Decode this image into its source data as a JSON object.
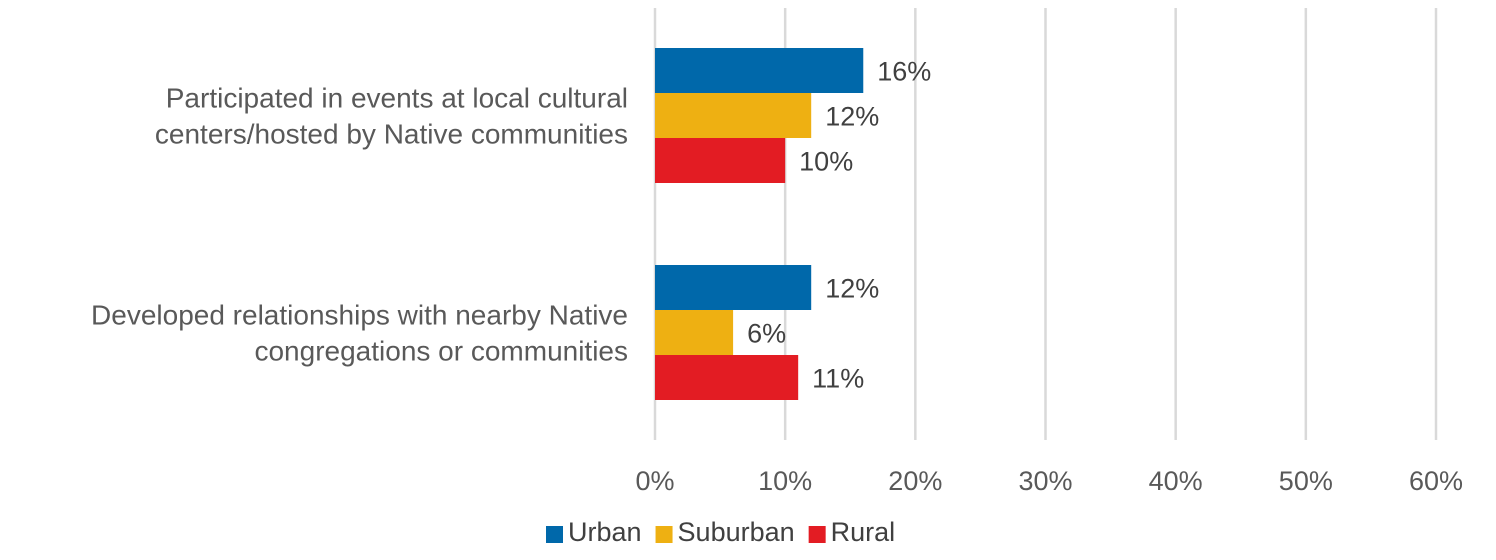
{
  "chart_data": {
    "type": "bar",
    "orientation": "horizontal",
    "title": "",
    "xlabel": "",
    "ylabel": "",
    "categories": [
      [
        "Participated in events at local cultural",
        "centers/hosted by Native communities"
      ],
      [
        "Developed relationships with nearby Native",
        "congregations or communities"
      ]
    ],
    "series": [
      {
        "name": "Urban",
        "color": "#0068aa",
        "values": [
          16,
          12
        ],
        "labels": [
          "16%",
          "12%"
        ]
      },
      {
        "name": "Suburban",
        "color": "#eeb012",
        "values": [
          12,
          6
        ],
        "labels": [
          "12%",
          "6%"
        ]
      },
      {
        "name": "Rural",
        "color": "#e31c23",
        "values": [
          10,
          11
        ],
        "labels": [
          "10%",
          "11%"
        ]
      }
    ],
    "xlim": [
      0,
      60
    ],
    "xticks": [
      0,
      10,
      20,
      30,
      40,
      50,
      60
    ],
    "xtick_labels": [
      "0%",
      "10%",
      "20%",
      "30%",
      "40%",
      "50%",
      "60%"
    ],
    "grid": "vertical",
    "legend_position": "bottom"
  }
}
